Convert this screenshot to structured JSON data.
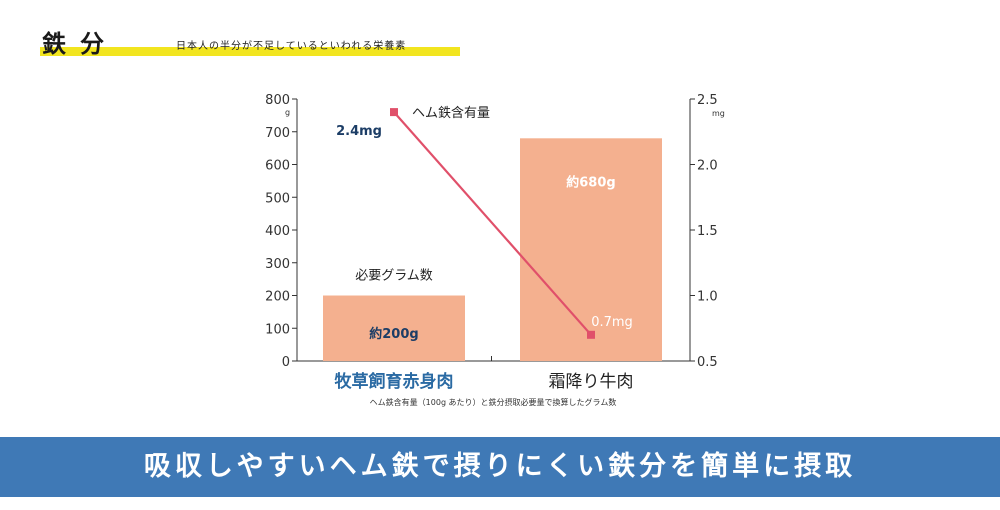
{
  "header": {
    "title": "鉄分",
    "subtitle": "日本人の半分が不足しているといわれる栄養素"
  },
  "chart_data": {
    "type": "bar",
    "categories": [
      "牧草飼育赤身肉",
      "霜降り牛肉"
    ],
    "series": [
      {
        "kind": "bar",
        "values": [
          200,
          680
        ],
        "labels": [
          "約200g",
          "約680g"
        ],
        "axis": "left",
        "color": "#f4b08f"
      },
      {
        "kind": "line",
        "name": "ヘム鉄含有量",
        "values": [
          2.4,
          0.7
        ],
        "labels": [
          "2.4mg",
          "0.7mg"
        ],
        "axis": "right",
        "color": "#e0506a"
      }
    ],
    "annotations": [
      "必要グラム数"
    ],
    "y_left": {
      "unit": "g",
      "range": [
        0,
        800
      ],
      "ticks": [
        0,
        100,
        200,
        300,
        400,
        500,
        600,
        700,
        800
      ]
    },
    "y_right": {
      "unit": "mg",
      "range": [
        0.5,
        2.5
      ],
      "ticks": [
        "0.5",
        "1.0",
        "1.5",
        "2.0",
        "2.5"
      ]
    },
    "caption": "ヘム鉄含有量（100g あたり）と鉄分摂取必要量で換算したグラム数",
    "category_colors": [
      "#2a6aa3",
      "#222222"
    ],
    "grid": false
  },
  "banner": {
    "text": "吸収しやすいヘム鉄で摂りにくい鉄分を簡単に摂取",
    "color": "#3f79b6"
  }
}
